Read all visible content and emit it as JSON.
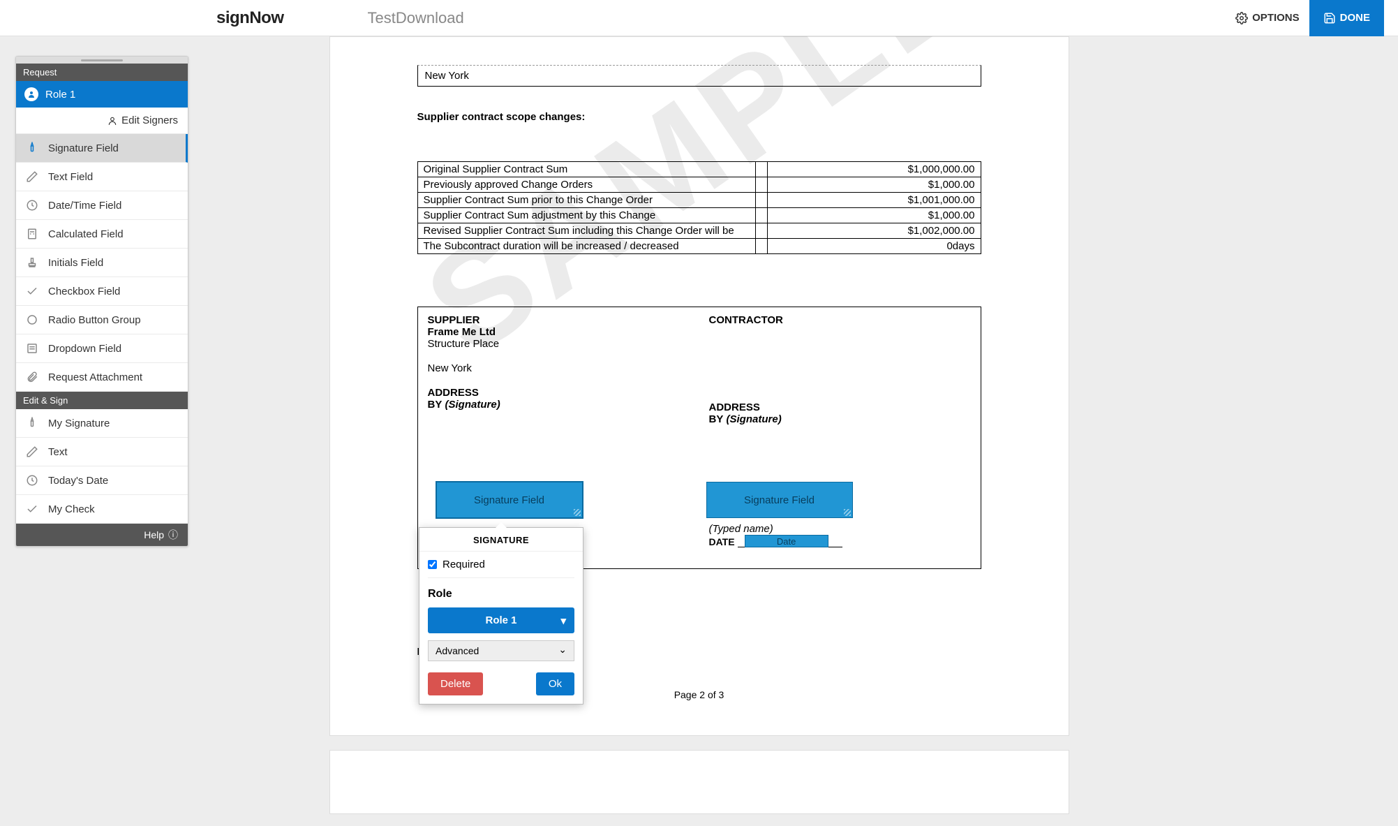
{
  "header": {
    "logo": "signNow",
    "doc_title": "TestDownload",
    "options_label": "OPTIONS",
    "done_label": "DONE"
  },
  "sidebar": {
    "request_header": "Request",
    "role": "Role 1",
    "edit_signers": "Edit Signers",
    "fields": [
      {
        "label": "Signature Field",
        "icon": "pen"
      },
      {
        "label": "Text Field",
        "icon": "pencil"
      },
      {
        "label": "Date/Time Field",
        "icon": "clock"
      },
      {
        "label": "Calculated Field",
        "icon": "calc"
      },
      {
        "label": "Initials Field",
        "icon": "stamp"
      },
      {
        "label": "Checkbox Field",
        "icon": "check"
      },
      {
        "label": "Radio Button Group",
        "icon": "radio"
      },
      {
        "label": "Dropdown Field",
        "icon": "dropdown"
      },
      {
        "label": "Request Attachment",
        "icon": "clip"
      }
    ],
    "edit_sign_header": "Edit & Sign",
    "edit_fields": [
      {
        "label": "My Signature",
        "icon": "pen2"
      },
      {
        "label": "Text",
        "icon": "pencil"
      },
      {
        "label": "Today's Date",
        "icon": "clock"
      },
      {
        "label": "My Check",
        "icon": "check"
      }
    ],
    "help": "Help"
  },
  "document": {
    "watermark": "SAMPLE",
    "address_prefill": "New York",
    "scope_title": "Supplier contract scope changes:",
    "table": [
      {
        "label": "Original Supplier Contract Sum",
        "value": "$1,000,000.00"
      },
      {
        "label": "Previously approved Change Orders",
        "value": "$1,000.00"
      },
      {
        "label": "Supplier Contract Sum prior to this Change Order",
        "value": "$1,001,000.00"
      },
      {
        "label": "Supplier Contract Sum adjustment by this Change",
        "value": "$1,000.00"
      },
      {
        "label": "Revised Supplier Contract Sum including this Change Order will be",
        "value": "$1,002,000.00"
      },
      {
        "label": "The Subcontract duration will be increased  /  decreased",
        "value": "0days"
      }
    ],
    "supplier": {
      "header": "SUPPLIER",
      "company": "Frame Me Ltd",
      "line1": "Structure Place",
      "line2": "New York",
      "address_label": "ADDRESS",
      "by_label": "BY",
      "signature_hint": "(Signature)",
      "sig_field_label": "Signature Field"
    },
    "contractor": {
      "header": "CONTRACTOR",
      "address_label": "ADDRESS",
      "by_label": "BY",
      "signature_hint": "(Signature)",
      "sig_field_label": "Signature Field",
      "typed_name": "(Typed name)",
      "date_label": "DATE",
      "date_field_label": "Date"
    },
    "page_indicator": "Page 2 of 3"
  },
  "popup": {
    "title": "SIGNATURE",
    "required_label": "Required",
    "required_checked": true,
    "role_label": "Role",
    "role_value": "Role 1",
    "advanced_label": "Advanced",
    "delete_label": "Delete",
    "ok_label": "Ok"
  },
  "colors": {
    "primary": "#0a78cc",
    "field_bg": "#2196d4",
    "danger": "#d9534f"
  }
}
